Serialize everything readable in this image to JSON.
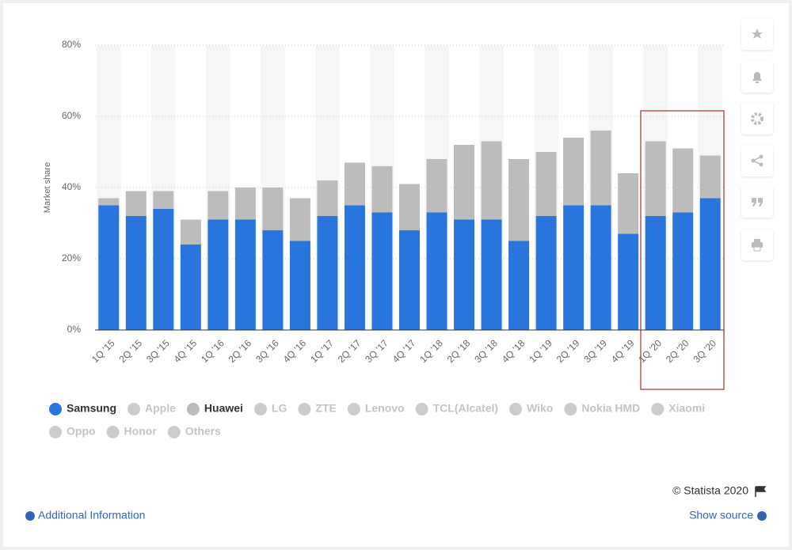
{
  "chart_data": {
    "type": "stacked-bar",
    "y_label": "Market share",
    "categories": [
      "1Q '15",
      "2Q '15",
      "3Q '15",
      "4Q '15",
      "1Q '16",
      "2Q '16",
      "3Q '16",
      "4Q '16",
      "1Q '17",
      "2Q '17",
      "3Q '17",
      "4Q '17",
      "1Q '18",
      "2Q '18",
      "3Q '18",
      "4Q '18",
      "1Q '19",
      "2Q '19",
      "3Q '19",
      "4Q '19",
      "1Q '20",
      "2Q '20",
      "3Q '20"
    ],
    "series": [
      {
        "name": "Samsung",
        "color": "#2876dd",
        "visible": true,
        "values": [
          35,
          32,
          34,
          24,
          31,
          31,
          28,
          25,
          32,
          35,
          33,
          28,
          33,
          31,
          31,
          25,
          32,
          35,
          35,
          27,
          32,
          33,
          37
        ]
      },
      {
        "name": "Apple",
        "color": "#cccccc",
        "visible": false
      },
      {
        "name": "Huawei",
        "color": "#bcbcbc",
        "visible": true,
        "values": [
          2,
          7,
          5,
          7,
          8,
          9,
          12,
          12,
          10,
          12,
          13,
          13,
          15,
          21,
          22,
          23,
          18,
          19,
          21,
          17,
          21,
          18,
          12
        ]
      },
      {
        "name": "LG",
        "color": "#cccccc",
        "visible": false
      },
      {
        "name": "ZTE",
        "color": "#cccccc",
        "visible": false
      },
      {
        "name": "Lenovo",
        "color": "#cccccc",
        "visible": false
      },
      {
        "name": "TCL(Alcatel)",
        "color": "#cccccc",
        "visible": false
      },
      {
        "name": "Wiko",
        "color": "#cccccc",
        "visible": false
      },
      {
        "name": "Nokia HMD",
        "color": "#cccccc",
        "visible": false
      },
      {
        "name": "Xiaomi",
        "color": "#cccccc",
        "visible": false
      },
      {
        "name": "Oppo",
        "color": "#cccccc",
        "visible": false
      },
      {
        "name": "Honor",
        "color": "#cccccc",
        "visible": false
      },
      {
        "name": "Others",
        "color": "#cccccc",
        "visible": false
      }
    ],
    "ylim": [
      0,
      80
    ],
    "yticks": [
      {
        "value": 0,
        "label": "0%"
      },
      {
        "value": 20,
        "label": "20%"
      },
      {
        "value": 40,
        "label": "40%"
      },
      {
        "value": 60,
        "label": "60%"
      },
      {
        "value": 80,
        "label": "80%"
      }
    ],
    "grid": true
  },
  "footer": {
    "copyright": "© Statista 2020",
    "additional_info": "Additional Information",
    "show_source": "Show source"
  }
}
